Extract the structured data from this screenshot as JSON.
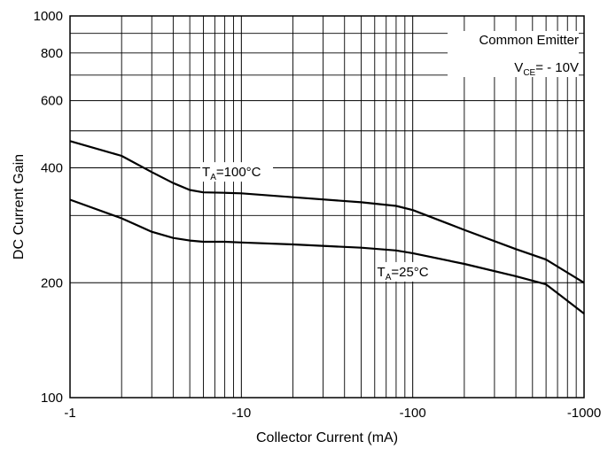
{
  "chart_data": {
    "type": "line",
    "xlabel": "Collector Current (mA)",
    "ylabel": "DC Current Gain",
    "x_scale": "log",
    "y_scale": "log",
    "x_range": [
      -1,
      -1000
    ],
    "y_range": [
      100,
      1000
    ],
    "x_ticks": [
      "-1",
      "-10",
      "-100",
      "-1000"
    ],
    "y_ticks": [
      "100",
      "200",
      "400",
      "600",
      "800",
      "1000"
    ],
    "grid": true,
    "annotations": {
      "line1": "Common Emitter",
      "line2_main": "V",
      "line2_sub": "CE",
      "line2_rest": "= - 10V"
    },
    "series": [
      {
        "name_main": "T",
        "name_sub": "A",
        "name_rest": "=100°C",
        "x": [
          -1,
          -2,
          -3,
          -4,
          -5,
          -6,
          -8,
          -10,
          -20,
          -50,
          -80,
          -100,
          -200,
          -400,
          -600,
          -1000
        ],
        "y": [
          470,
          430,
          390,
          365,
          350,
          345,
          344,
          343,
          335,
          325,
          318,
          310,
          275,
          245,
          230,
          200
        ]
      },
      {
        "name_main": "T",
        "name_sub": "A",
        "name_rest": "=25°C",
        "x": [
          -1,
          -2,
          -3,
          -4,
          -5,
          -6,
          -8,
          -10,
          -20,
          -50,
          -80,
          -100,
          -200,
          -400,
          -600,
          -1000
        ],
        "y": [
          330,
          295,
          272,
          262,
          258,
          256,
          256,
          255,
          252,
          247,
          243,
          239,
          224,
          208,
          198,
          166
        ]
      }
    ]
  }
}
